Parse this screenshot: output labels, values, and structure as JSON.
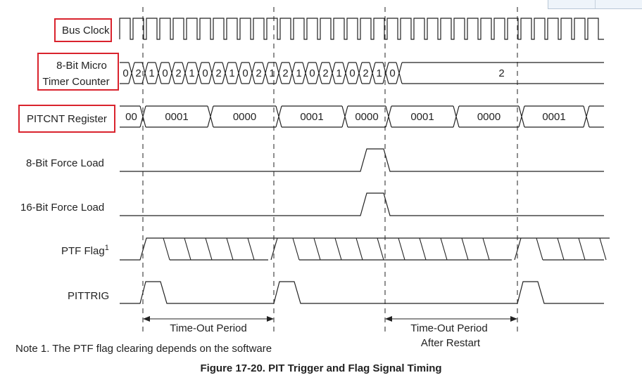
{
  "signals": {
    "bus_clock": "Bus Clock",
    "micro_counter_line1": "8-Bit Micro",
    "micro_counter_line2": "Timer Counter",
    "pitcnt": "PITCNT Register",
    "force8": "8-Bit Force Load",
    "force16": "16-Bit Force Load",
    "ptf": "PTF Flag",
    "ptf_sup": "1",
    "pittrig": "PITTRIG"
  },
  "micro_counter_values": [
    "0",
    "2",
    "1",
    "0",
    "2",
    "1",
    "0",
    "2",
    "1",
    "0",
    "2",
    "1",
    "2",
    "1",
    "0",
    "2",
    "1",
    "0",
    "2",
    "1",
    "0",
    "2"
  ],
  "pitcnt_values": [
    "00",
    "0001",
    "0000",
    "0001",
    "0000",
    "0001",
    "0000",
    "0001"
  ],
  "periods": {
    "first": "Time-Out Period",
    "second_line1": "Time-Out Period",
    "second_line2": "After Restart"
  },
  "note": "Note 1. The PTF flag clearing depends on the software",
  "caption": "Figure 17-20. PIT Trigger and Flag Signal Timing",
  "colors": {
    "highlight_box": "#d9232d",
    "ink": "#222222"
  }
}
